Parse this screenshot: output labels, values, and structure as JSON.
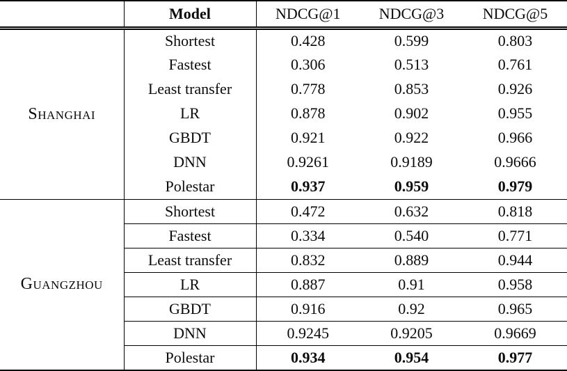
{
  "table": {
    "header": {
      "city": "",
      "model": "Model",
      "metrics": [
        "NDCG@1",
        "NDCG@3",
        "NDCG@5"
      ]
    },
    "sections": [
      {
        "city": "Shanghai",
        "rows": [
          {
            "model": "Shortest",
            "values": [
              "0.428",
              "0.599",
              "0.803"
            ],
            "bold": false
          },
          {
            "model": "Fastest",
            "values": [
              "0.306",
              "0.513",
              "0.761"
            ],
            "bold": false
          },
          {
            "model": "Least transfer",
            "values": [
              "0.778",
              "0.853",
              "0.926"
            ],
            "bold": false
          },
          {
            "model": "LR",
            "values": [
              "0.878",
              "0.902",
              "0.955"
            ],
            "bold": false
          },
          {
            "model": "GBDT",
            "values": [
              "0.921",
              "0.922",
              "0.966"
            ],
            "bold": false
          },
          {
            "model": "DNN",
            "values": [
              "0.9261",
              "0.9189",
              "0.9666"
            ],
            "bold": false
          },
          {
            "model": "Polestar",
            "values": [
              "0.937",
              "0.959",
              "0.979"
            ],
            "bold": true
          }
        ]
      },
      {
        "city": "Guangzhou",
        "rows": [
          {
            "model": "Shortest",
            "values": [
              "0.472",
              "0.632",
              "0.818"
            ],
            "bold": false
          },
          {
            "model": "Fastest",
            "values": [
              "0.334",
              "0.540",
              "0.771"
            ],
            "bold": false
          },
          {
            "model": "Least transfer",
            "values": [
              "0.832",
              "0.889",
              "0.944"
            ],
            "bold": false
          },
          {
            "model": "LR",
            "values": [
              "0.887",
              "0.91",
              "0.958"
            ],
            "bold": false
          },
          {
            "model": "GBDT",
            "values": [
              "0.916",
              "0.92",
              "0.965"
            ],
            "bold": false
          },
          {
            "model": "DNN",
            "values": [
              "0.9245",
              "0.9205",
              "0.9669"
            ],
            "bold": false
          },
          {
            "model": "Polestar",
            "values": [
              "0.934",
              "0.954",
              "0.977"
            ],
            "bold": true
          }
        ]
      }
    ]
  }
}
